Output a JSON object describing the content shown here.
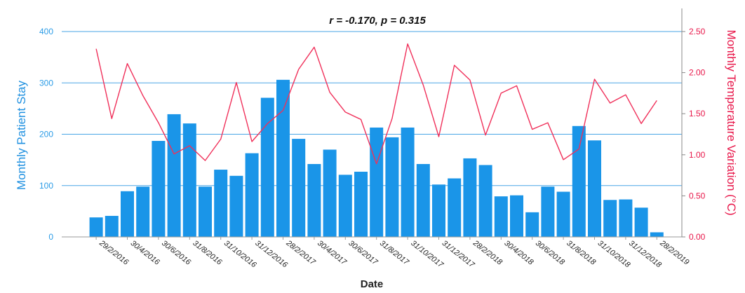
{
  "chart_data": {
    "type": "bar",
    "title": "r = -0.170, p = 0.315",
    "xlabel": "Date",
    "ylabel_left": "Monthly Patient Stay",
    "ylabel_right": "Monthly Temperature Variation (°C)",
    "ylim_left": [
      0,
      400
    ],
    "yticks_left": [
      "0",
      "100",
      "200",
      "300",
      "400"
    ],
    "ylim_right": [
      0,
      2.5
    ],
    "yticks_right": [
      "0.00",
      "0.50",
      "1.00",
      "1.50",
      "2.00",
      "2.50"
    ],
    "grid": true,
    "x_tick_labels": [
      "29/2/2016",
      "30/4/2016",
      "30/6/2016",
      "31/8/2016",
      "31/10/2016",
      "31/12/2016",
      "28/2/2017",
      "30/4/2017",
      "30/6/2017",
      "31/8/2017",
      "31/10/2017",
      "31/12/2017",
      "28/2/2018",
      "30/4/2018",
      "30/6/2018",
      "31/8/2018",
      "31/10/2018",
      "31/12/2018",
      "28/2/2019"
    ],
    "series": [
      {
        "type": "bar",
        "axis": "left",
        "values": [
          38,
          41,
          89,
          98,
          187,
          239,
          221,
          98,
          131,
          119,
          163,
          271,
          306,
          191,
          142,
          170,
          121,
          127,
          213,
          194,
          213,
          142,
          102,
          114,
          153,
          140,
          79,
          81,
          48,
          98,
          88,
          216,
          188,
          72,
          73,
          57,
          9
        ]
      },
      {
        "type": "line",
        "axis": "right",
        "values": [
          2.29,
          1.44,
          2.11,
          1.72,
          1.39,
          1.01,
          1.11,
          0.93,
          1.19,
          1.88,
          1.16,
          1.38,
          1.54,
          2.04,
          2.31,
          1.76,
          1.52,
          1.43,
          0.89,
          1.44,
          2.35,
          1.85,
          1.22,
          2.09,
          1.91,
          1.24,
          1.75,
          1.84,
          1.31,
          1.39,
          0.94,
          1.07,
          1.92,
          1.63,
          1.73,
          1.38,
          1.66
        ]
      }
    ],
    "colors": {
      "bars": "#1a95e8",
      "line": "#f0305a",
      "grid": "#4aa6e6",
      "axis_right": "#e8174a",
      "axis_left": "#2a9be6"
    }
  }
}
